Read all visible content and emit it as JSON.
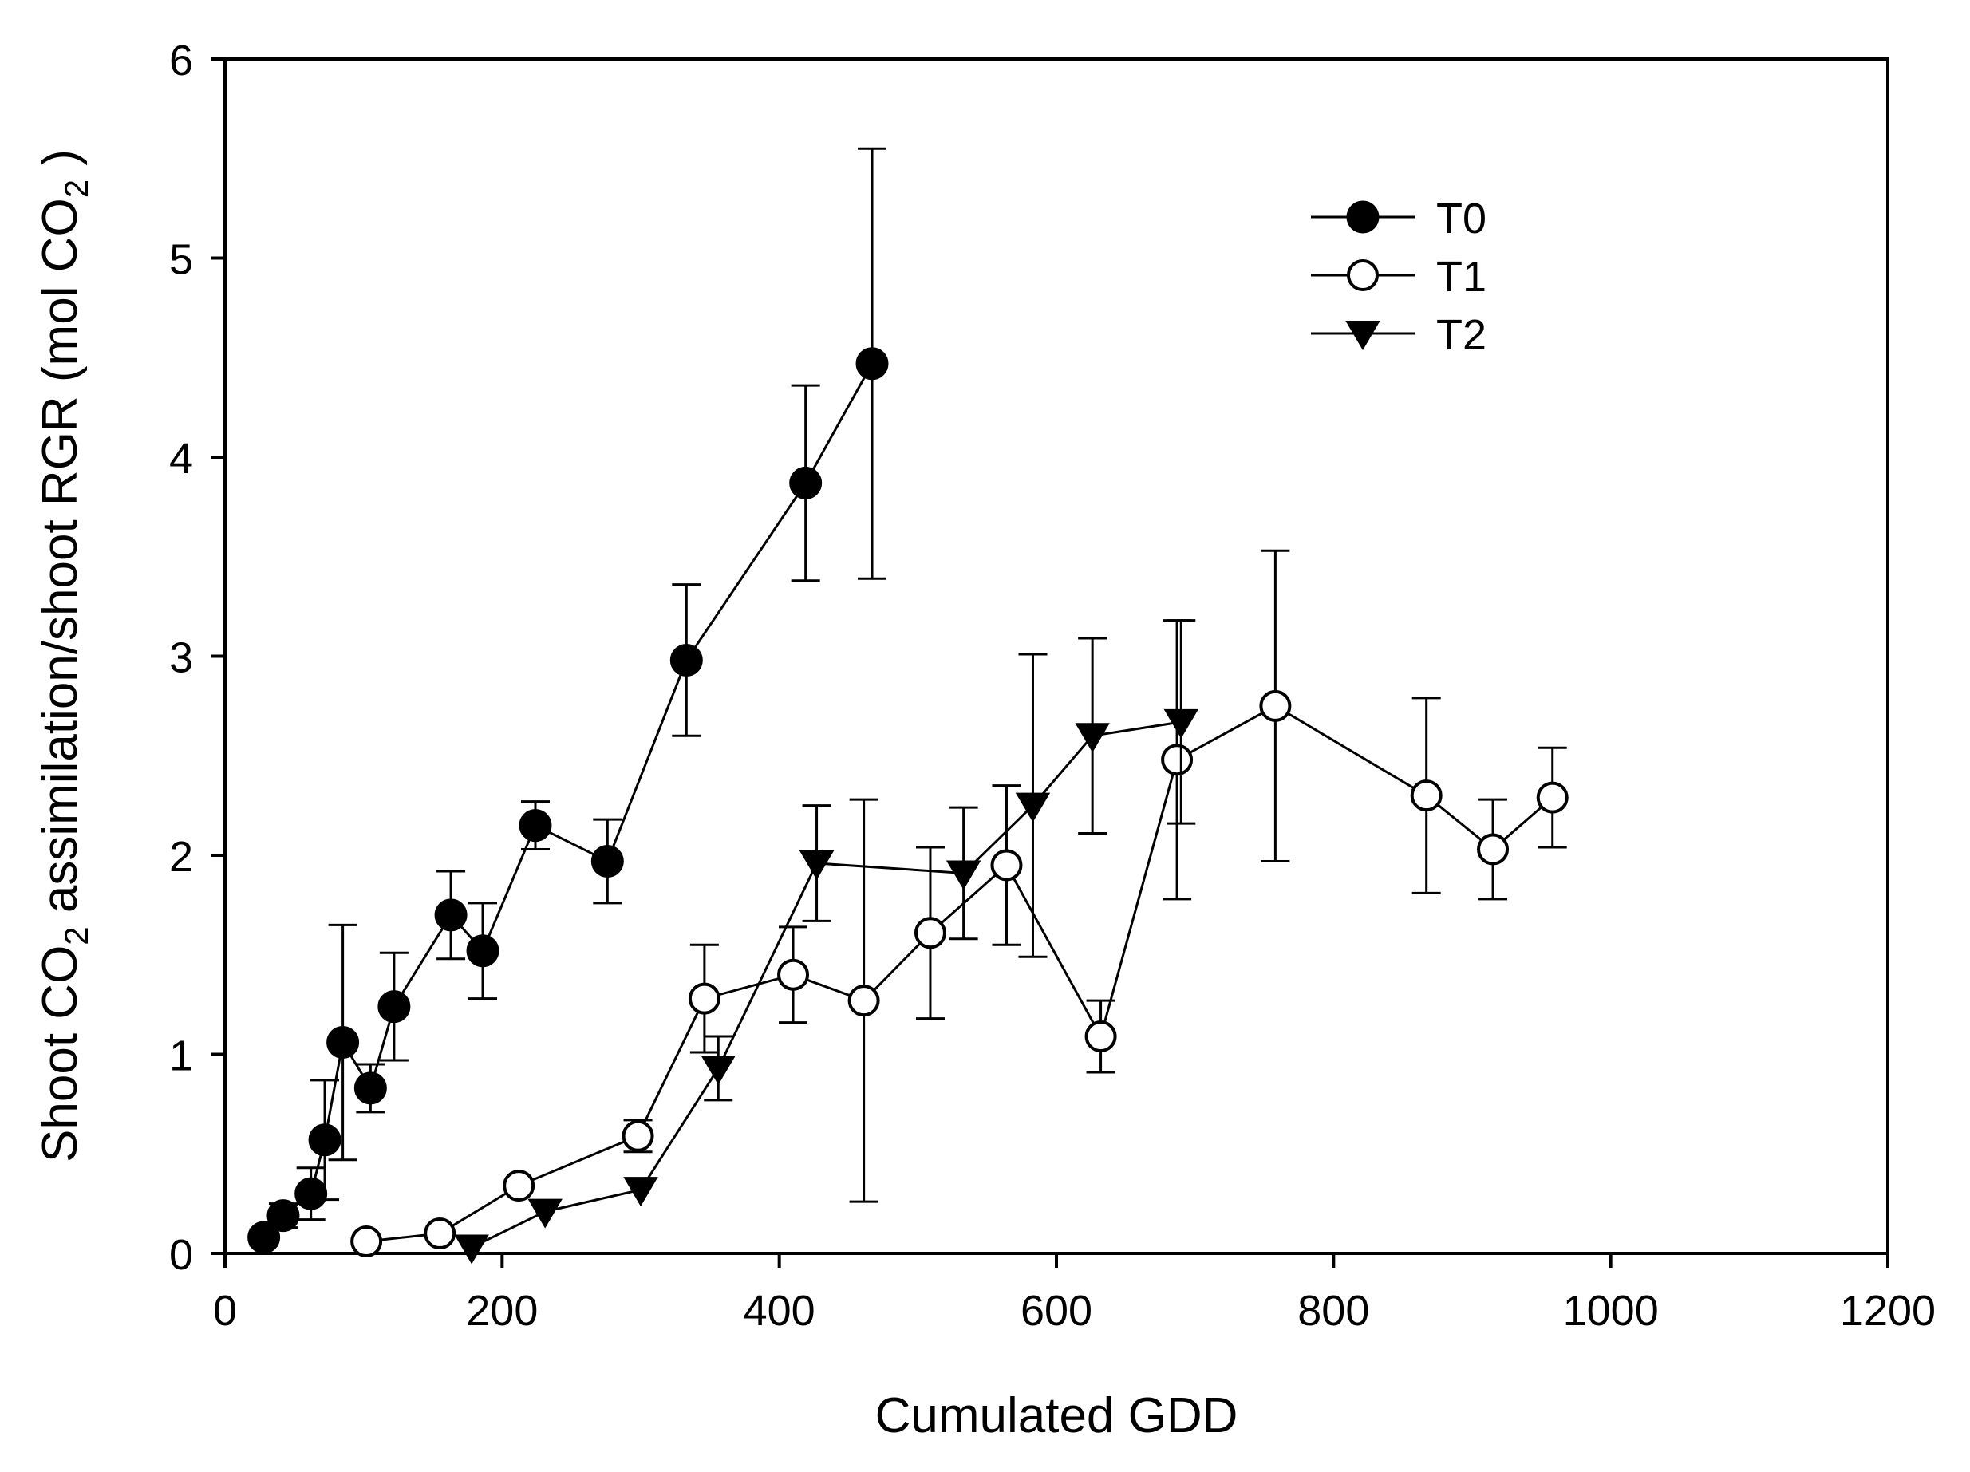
{
  "chart_data": {
    "type": "scatter",
    "title": "",
    "xlabel": "Cumulated GDD",
    "ylabel_parts": {
      "part1": "Shoot CO",
      "sub1": "2",
      "part2": " assimilation/shoot RGR (mol CO",
      "sub2": "2",
      "part3": " )"
    },
    "xlim": [
      0,
      1200
    ],
    "ylim": [
      0,
      6
    ],
    "xticks": [
      "0",
      "200",
      "400",
      "600",
      "800",
      "1000",
      "1200"
    ],
    "yticks": [
      "0",
      "1",
      "2",
      "3",
      "4",
      "5",
      "6"
    ],
    "legend_position": "top-right",
    "series": [
      {
        "name": "T0",
        "marker": "filled-circle",
        "points": [
          {
            "x": 28,
            "y": 0.08,
            "err": 0.04
          },
          {
            "x": 42,
            "y": 0.19,
            "err": 0.06
          },
          {
            "x": 62,
            "y": 0.3,
            "err": 0.13
          },
          {
            "x": 72,
            "y": 0.57,
            "err": 0.3
          },
          {
            "x": 85,
            "y": 1.06,
            "err": 0.59
          },
          {
            "x": 105,
            "y": 0.83,
            "err": 0.12
          },
          {
            "x": 122,
            "y": 1.24,
            "err": 0.27
          },
          {
            "x": 163,
            "y": 1.7,
            "err": 0.22
          },
          {
            "x": 186,
            "y": 1.52,
            "err": 0.24
          },
          {
            "x": 224,
            "y": 2.15,
            "err": 0.12
          },
          {
            "x": 276,
            "y": 1.97,
            "err": 0.21
          },
          {
            "x": 333,
            "y": 2.98,
            "err": 0.38
          },
          {
            "x": 419,
            "y": 3.87,
            "err": 0.49
          },
          {
            "x": 467,
            "y": 4.47,
            "err": 1.08
          }
        ]
      },
      {
        "name": "T1",
        "marker": "open-circle",
        "points": [
          {
            "x": 102,
            "y": 0.06,
            "err": 0
          },
          {
            "x": 155,
            "y": 0.1,
            "err": 0
          },
          {
            "x": 212,
            "y": 0.34,
            "err": 0
          },
          {
            "x": 298,
            "y": 0.59,
            "err": 0.08
          },
          {
            "x": 346,
            "y": 1.28,
            "err": 0.27
          },
          {
            "x": 410,
            "y": 1.4,
            "err": 0.24
          },
          {
            "x": 461,
            "y": 1.27,
            "err": 1.01
          },
          {
            "x": 509,
            "y": 1.61,
            "err": 0.43
          },
          {
            "x": 564,
            "y": 1.95,
            "err": 0.4
          },
          {
            "x": 632,
            "y": 1.09,
            "err": 0.18
          },
          {
            "x": 687,
            "y": 2.48,
            "err": 0.7
          },
          {
            "x": 758,
            "y": 2.75,
            "err": 0.78
          },
          {
            "x": 867,
            "y": 2.3,
            "err": 0.49
          },
          {
            "x": 915,
            "y": 2.03,
            "err": 0.25
          },
          {
            "x": 958,
            "y": 2.29,
            "err": 0.25
          }
        ]
      },
      {
        "name": "T2",
        "marker": "filled-triangle-down",
        "points": [
          {
            "x": 178,
            "y": 0.03,
            "err": 0
          },
          {
            "x": 231,
            "y": 0.21,
            "err": 0
          },
          {
            "x": 300,
            "y": 0.32,
            "err": 0
          },
          {
            "x": 356,
            "y": 0.93,
            "err": 0.16
          },
          {
            "x": 427,
            "y": 1.96,
            "err": 0.29
          },
          {
            "x": 533,
            "y": 1.91,
            "err": 0.33
          },
          {
            "x": 583,
            "y": 2.25,
            "err": 0.76
          },
          {
            "x": 626,
            "y": 2.6,
            "err": 0.49
          },
          {
            "x": 690,
            "y": 2.67,
            "err": 0.51
          }
        ]
      }
    ]
  }
}
